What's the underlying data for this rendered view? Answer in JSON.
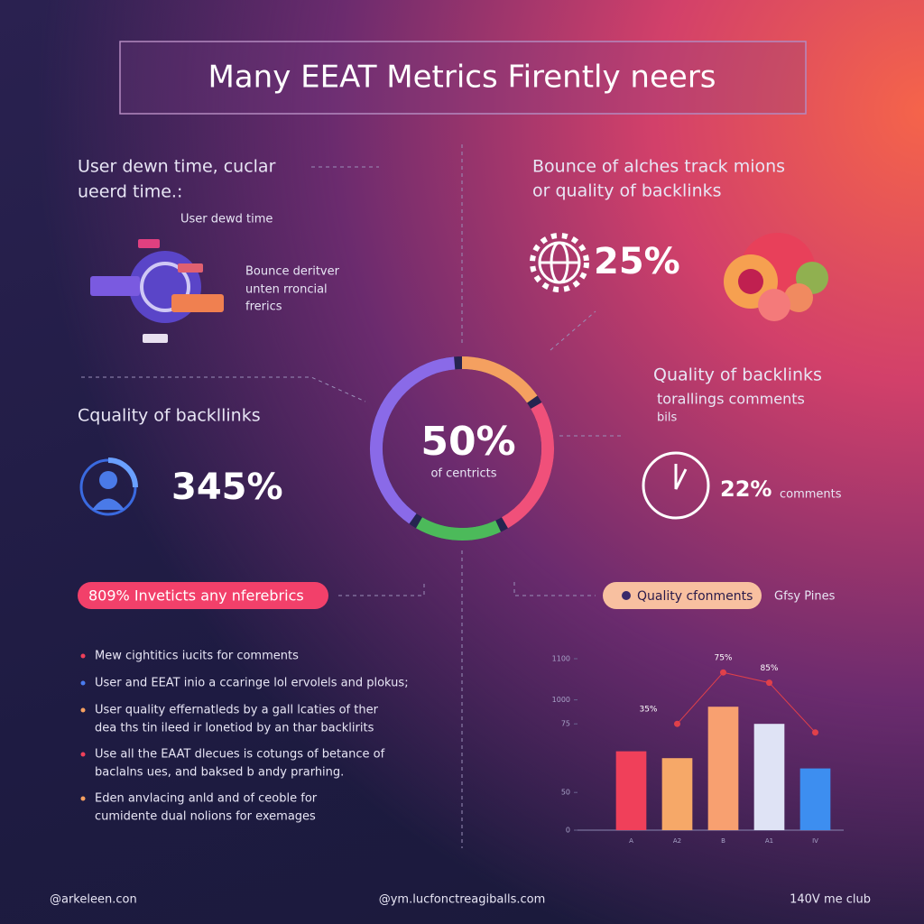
{
  "title": "Many EEAT Metrics Firently neers",
  "top_left": {
    "heading": [
      "User dewn time, cuclar",
      "ueerd time.:"
    ],
    "illustration_label": "User dewd time",
    "side_text": [
      "Bounce deritver",
      "unten rroncial",
      "frerics"
    ]
  },
  "top_right": {
    "heading": [
      "Bounce of alches track mions",
      "or quality of backlinks"
    ],
    "stat": "25%"
  },
  "center": {
    "stat": "50%",
    "label": "of centricts"
  },
  "mid_left": {
    "heading": "Cquality of backllinks",
    "stat": "345%"
  },
  "mid_right": {
    "heading": "Quality of backlinks",
    "lines": [
      "torallings comments",
      "bils"
    ],
    "stat": "22%",
    "stat_label": "comments"
  },
  "pill_left": "809% Inveticts any nferebrics",
  "pill_right": "Quality cfonments",
  "pill_right_side": "Gfsy Pines",
  "bullets": [
    [
      "Mew cightitics iucits for comments"
    ],
    [
      "User and EEAT inio a ccaringe lol ervolels and plokus;"
    ],
    [
      "User quality effernatleds by a gall lcaties of ther",
      "dea ths tin ileed ir lonetiod by an thar backlirits"
    ],
    [
      "Use all the EAAT dlecues is cotungs of betance of",
      "baclalns ues, and baksed b andy prarhing."
    ],
    [
      "Eden anvlacing anld and of ceoble for",
      "cumidente dual nolions for exemages"
    ]
  ],
  "bullet_colors": [
    "#f0405a",
    "#4a7cf0",
    "#f6a060",
    "#f0405a",
    "#f6a060"
  ],
  "chart_data": {
    "type": "bar",
    "categories": [
      "A",
      "A2",
      "B",
      "A1",
      "IV"
    ],
    "values": [
      46,
      42,
      72,
      62,
      36
    ],
    "colors": [
      "#f0405a",
      "#f6a868",
      "#f8a070",
      "#dfe3f5",
      "#3d8ef0"
    ],
    "line": {
      "values": [
        null,
        62,
        92,
        86,
        57
      ],
      "color": "#e0404a"
    },
    "annotations": [
      "35%",
      "75%",
      "85%"
    ],
    "ylim": [
      0,
      100
    ],
    "yticks": [
      {
        "value": 100,
        "label": "1100"
      },
      {
        "value": 76,
        "label": "1000"
      },
      {
        "value": 62,
        "label": "75"
      },
      {
        "value": 22,
        "label": "50"
      },
      0
    ]
  },
  "footer": [
    "@arkeleen.con",
    "@ym.lucfonctreagiballs.com",
    "140V me club"
  ]
}
